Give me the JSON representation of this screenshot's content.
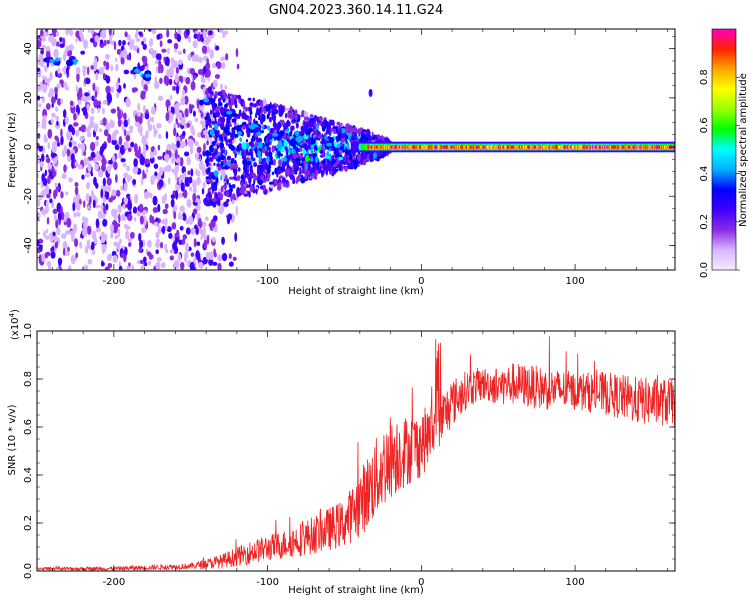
{
  "page_title": "GN04.2023.360.14.11.G24",
  "chart_data": [
    {
      "type": "heatmap",
      "title": "GN04.2023.360.14.11.G24",
      "xlabel": "Height of straight line (km)",
      "ylabel": "Frequency (Hz)",
      "xlim": [
        -250,
        165
      ],
      "ylim": [
        -50,
        48
      ],
      "xticks": [
        -200,
        -100,
        0,
        100
      ],
      "yticks": [
        -40,
        -20,
        0,
        20,
        40
      ],
      "xtick_labels": [
        "-200",
        "-100",
        "0",
        "100"
      ],
      "ytick_labels": [
        "-40",
        "-20",
        "0",
        "20",
        "40"
      ],
      "colorbar": {
        "label": "Normalized spectral amplitude",
        "range": [
          0,
          1
        ],
        "ticks": [
          "0.0",
          "0.2",
          "0.4",
          "0.6",
          "0.8"
        ],
        "colors": [
          "#f5ecff",
          "#d8b4ff",
          "#8a2be2",
          "#3f00ff",
          "#0000ff",
          "#00b0ff",
          "#00ffff",
          "#00ff00",
          "#9aff00",
          "#ffff00",
          "#ffa500",
          "#ff2000",
          "#ff00c0"
        ]
      },
      "features": {
        "carrier_frequency_hz": 0,
        "carrier_start_km": -30,
        "noise_region_end_km": -140,
        "turbulent_region_km": [
          -140,
          -30
        ],
        "harmonic_track_points": [
          [
            -240,
            35
          ],
          [
            -225,
            35
          ],
          [
            -185,
            31
          ],
          [
            -178,
            29
          ],
          [
            -140,
            19
          ],
          [
            -125,
            14
          ],
          [
            -110,
            8
          ],
          [
            -95,
            5
          ],
          [
            -80,
            3
          ],
          [
            -60,
            1
          ]
        ],
        "isolated_spot": [
          -33,
          22
        ]
      }
    },
    {
      "type": "line",
      "title": "",
      "xlabel": "Height of straight line (km)",
      "ylabel": "SNR (10 * v/v)",
      "y_multiplier": "(x10",
      "y_multiplier_exp": "4",
      "y_multiplier_close": ")",
      "xlim": [
        -250,
        165
      ],
      "ylim": [
        0,
        1.0
      ],
      "xticks": [
        -200,
        -100,
        0,
        100
      ],
      "yticks": [
        0,
        0.2,
        0.4,
        0.6,
        0.8,
        1.0
      ],
      "xtick_labels": [
        "-200",
        "-100",
        "0",
        "100"
      ],
      "ytick_labels": [
        "0.0",
        "0.2",
        "0.4",
        "0.6",
        "0.8",
        "1.0"
      ],
      "color": "#ee2222",
      "series": [
        {
          "x": [
            -250,
            -200,
            -150,
            -130,
            -110,
            -90,
            -70,
            -50,
            -40,
            -30,
            -20,
            -10,
            0,
            10,
            20,
            30,
            40,
            50,
            60,
            80,
            100,
            120,
            140,
            165
          ],
          "values": [
            0.01,
            0.01,
            0.02,
            0.04,
            0.08,
            0.11,
            0.15,
            0.2,
            0.28,
            0.38,
            0.48,
            0.5,
            0.53,
            0.6,
            0.7,
            0.76,
            0.78,
            0.77,
            0.78,
            0.76,
            0.75,
            0.74,
            0.71,
            0.7
          ],
          "noise_amplitude": [
            0.006,
            0.008,
            0.012,
            0.03,
            0.05,
            0.06,
            0.08,
            0.1,
            0.14,
            0.17,
            0.18,
            0.15,
            0.14,
            0.12,
            0.1,
            0.08,
            0.07,
            0.08,
            0.09,
            0.09,
            0.08,
            0.09,
            0.1,
            0.1
          ]
        }
      ]
    }
  ]
}
